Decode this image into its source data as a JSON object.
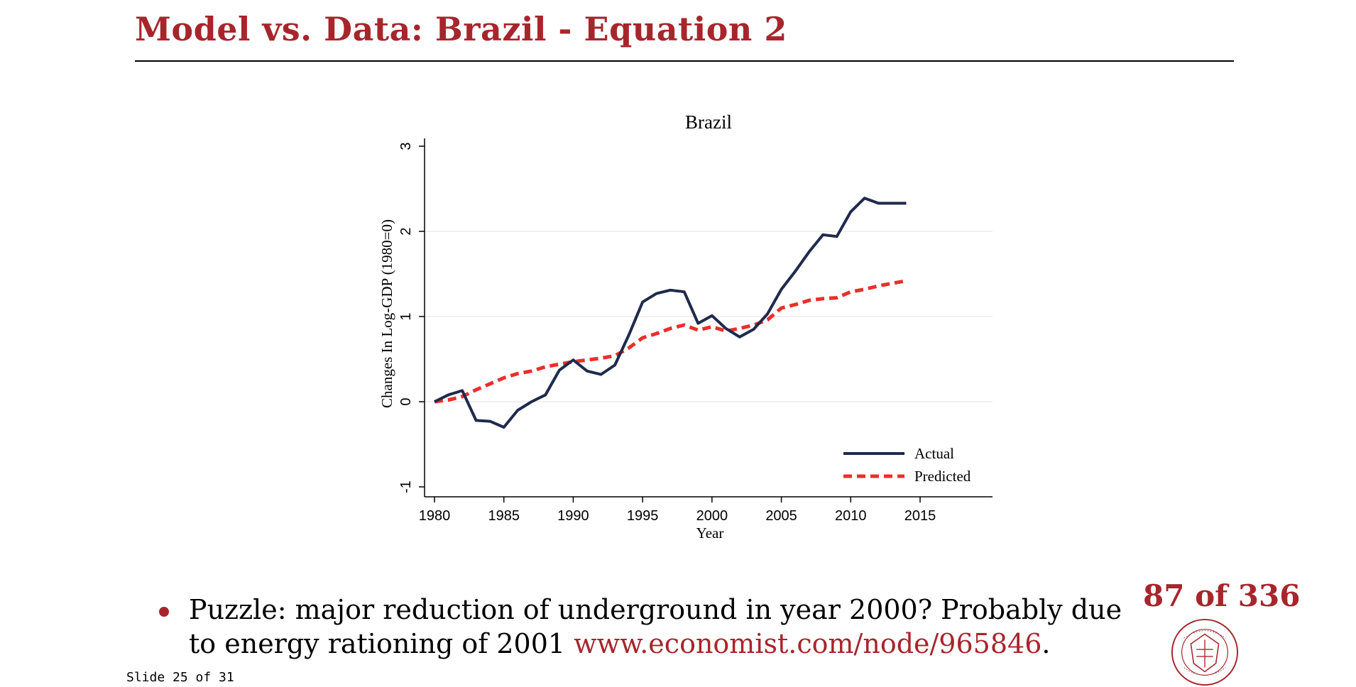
{
  "slide": {
    "title": "Model vs. Data: Brazil - Equation 2",
    "bullet_text": "Puzzle: major reduction of underground in year 2000? Probably due to energy rationing of 2001 ",
    "bullet_link": "www.economist.com/node/965846",
    "bullet_end": ".",
    "page_count": "87 of 336",
    "slide_number": "Slide 25 of 31",
    "seal_text": "CARNEGIE MELLON UNIVERSITY · PITTSBURGH PENNSYLVANIA 1900",
    "colors": {
      "accent": "#A6262C"
    }
  },
  "chart_data": {
    "type": "line",
    "title": "Brazil",
    "xlabel": "Year",
    "ylabel": "Changes In Log-GDP (1980=0)",
    "xlim": [
      1979,
      2019
    ],
    "ylim": [
      -1.1,
      3.1
    ],
    "xticks": [
      1980,
      1985,
      1990,
      1995,
      2000,
      2005,
      2010,
      2015
    ],
    "yticks": [
      -1,
      0,
      1,
      2,
      3
    ],
    "grid": "horizontal",
    "legend_position": "bottom-right",
    "x": [
      1980,
      1981,
      1982,
      1983,
      1984,
      1985,
      1986,
      1987,
      1988,
      1989,
      1990,
      1991,
      1992,
      1993,
      1994,
      1995,
      1996,
      1997,
      1998,
      1999,
      2000,
      2001,
      2002,
      2003,
      2004,
      2005,
      2006,
      2007,
      2008,
      2009,
      2010,
      2011,
      2012,
      2013,
      2014
    ],
    "series": [
      {
        "name": "Actual",
        "color": "#1F2A4D",
        "style": "solid",
        "values": [
          0,
          0.08,
          0.13,
          -0.22,
          -0.23,
          -0.3,
          -0.1,
          0.0,
          0.08,
          0.37,
          0.49,
          0.36,
          0.32,
          0.43,
          0.78,
          1.17,
          1.27,
          1.31,
          1.29,
          0.92,
          1.01,
          0.86,
          0.76,
          0.85,
          1.03,
          1.32,
          1.53,
          1.76,
          1.96,
          1.94,
          2.23,
          2.39,
          2.33,
          2.33,
          2.33
        ]
      },
      {
        "name": "Predicted",
        "color": "#E8302B",
        "style": "dashed",
        "values": [
          0,
          0.02,
          0.06,
          0.14,
          0.21,
          0.28,
          0.33,
          0.36,
          0.41,
          0.44,
          0.47,
          0.49,
          0.51,
          0.54,
          0.63,
          0.75,
          0.8,
          0.86,
          0.9,
          0.84,
          0.88,
          0.83,
          0.86,
          0.9,
          0.96,
          1.1,
          1.14,
          1.19,
          1.21,
          1.22,
          1.29,
          1.32,
          1.36,
          1.39,
          1.42
        ]
      }
    ]
  }
}
